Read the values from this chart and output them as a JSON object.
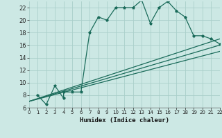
{
  "xlabel": "Humidex (Indice chaleur)",
  "bg_color": "#cce8e4",
  "grid_color": "#aacfca",
  "line_color": "#1a6b5a",
  "x_min": 0,
  "x_max": 22,
  "y_min": 6,
  "y_max": 23,
  "yticks": [
    6,
    8,
    10,
    12,
    14,
    16,
    18,
    20,
    22
  ],
  "xticks": [
    0,
    1,
    2,
    3,
    4,
    5,
    6,
    7,
    8,
    9,
    10,
    11,
    12,
    13,
    14,
    15,
    16,
    17,
    18,
    19,
    20,
    21,
    22
  ],
  "series1_x": [
    1,
    2,
    3,
    4,
    4,
    5,
    6,
    7,
    8,
    9,
    10,
    11,
    12,
    13,
    14,
    15,
    16,
    17,
    18,
    19,
    20,
    21,
    22
  ],
  "series1_y": [
    8.0,
    6.5,
    9.5,
    7.5,
    8.5,
    8.5,
    8.5,
    18.0,
    20.5,
    20.0,
    22.0,
    22.0,
    22.0,
    23.2,
    19.5,
    22.0,
    23.0,
    21.5,
    20.5,
    17.5,
    17.5,
    17.0,
    16.2
  ],
  "series2_x": [
    0,
    22
  ],
  "series2_y": [
    7.0,
    17.0
  ],
  "series3_x": [
    0,
    22
  ],
  "series3_y": [
    7.0,
    15.0
  ],
  "series4_x": [
    0,
    22
  ],
  "series4_y": [
    7.0,
    16.0
  ]
}
